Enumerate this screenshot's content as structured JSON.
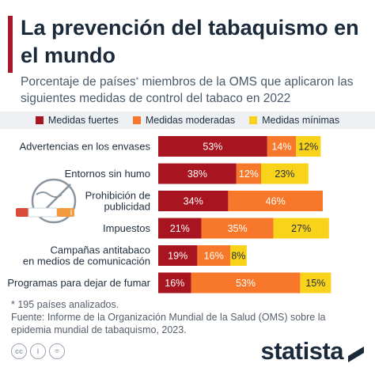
{
  "header": {
    "title": "La prevención del tabaquismo en el mundo",
    "subtitle_part1": "Porcentaje de países",
    "subtitle_mark": "*",
    "subtitle_part2": " miembros de la OMS que aplicaron las siguientes medidas de control del tabaco en 2022"
  },
  "colors": {
    "accent": "#a8182a",
    "fuertes": "#a8141f",
    "moderadas": "#f7782a",
    "minimas": "#f9d21a",
    "legend_band": "#eef1f4"
  },
  "chart_data": {
    "type": "bar",
    "orientation": "horizontal",
    "stacked": true,
    "categories": [
      [
        "Advertencias en los envases"
      ],
      [
        "Entornos sin humo"
      ],
      [
        "Prohibición de",
        "publicidad"
      ],
      [
        "Impuestos"
      ],
      [
        "Campañas antitabaco",
        "en medios de comunicación"
      ],
      [
        "Programas para dejar de fumar"
      ]
    ],
    "series": [
      {
        "name": "Medidas fuertes",
        "color": "#a8141f",
        "values": [
          53,
          38,
          34,
          21,
          19,
          16
        ],
        "labels": [
          "53%",
          "38%",
          "34%",
          "21%",
          "19%",
          "16%"
        ]
      },
      {
        "name": "Medidas moderadas",
        "color": "#f7782a",
        "values": [
          14,
          12,
          46,
          35,
          16,
          53
        ],
        "labels": [
          "14%",
          "12%",
          "46%",
          "35%",
          "16%",
          "53%"
        ]
      },
      {
        "name": "Medidas mínimas",
        "color": "#f9d21a",
        "values": [
          12,
          23,
          0,
          27,
          8,
          15
        ],
        "labels": [
          "12%",
          "23%",
          "",
          "27%",
          "8%",
          "15%"
        ]
      }
    ],
    "xlim": [
      0,
      100
    ],
    "legend_position": "top",
    "grid": false
  },
  "footnote": {
    "note": "* 195 países analizados.",
    "source": "Fuente: Informe de la Organización Mundial de la Salud (OMS) sobre la epidemia mundial de tabaquismo, 2023."
  },
  "footer": {
    "brand": "statista",
    "license_icons": [
      "cc-icon",
      "by-icon",
      "nd-icon"
    ]
  }
}
